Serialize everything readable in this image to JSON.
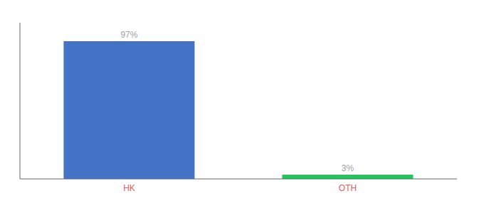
{
  "chart_data": {
    "type": "bar",
    "categories": [
      "HK",
      "OTH"
    ],
    "values": [
      97,
      3
    ],
    "colors": [
      "#4472c4",
      "#22c55e"
    ],
    "value_labels": [
      "97%",
      "3%"
    ],
    "data_labels": true,
    "ylim": [
      0,
      110
    ],
    "tick_labels": "x",
    "grid": false
  }
}
